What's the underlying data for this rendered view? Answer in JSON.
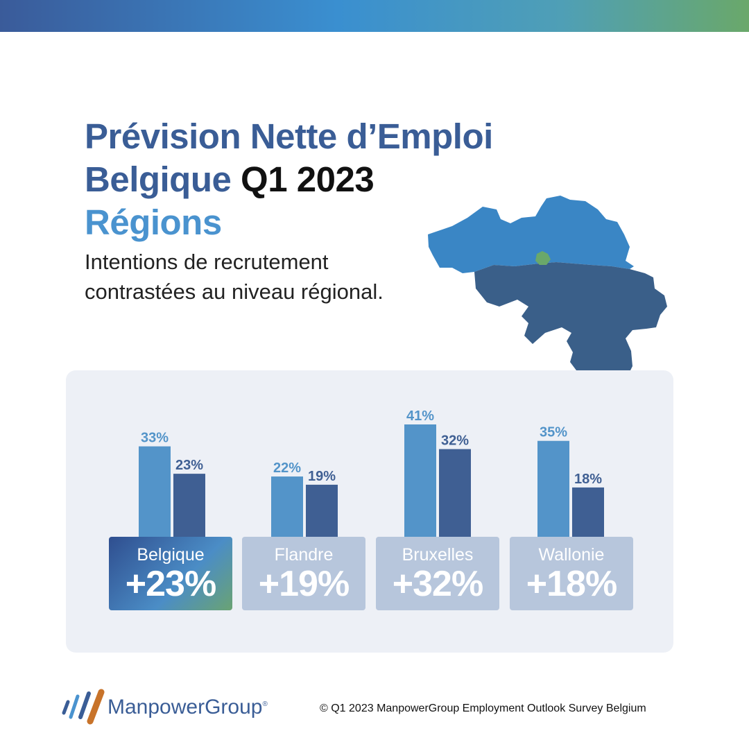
{
  "header": {
    "title_line1": "Prévision Nette d’Emploi",
    "title_line2_part1": "Belgique",
    "title_line2_part2": "Q1 2023",
    "title_line3": "Régions",
    "subtitle_line1": "Intentions de recrutement",
    "subtitle_line2": "contrastées au niveau régional."
  },
  "colors": {
    "brand_blue": "#3a5d96",
    "light_blue": "#4a93cf",
    "bar_light": "#5394c9",
    "bar_dark": "#3f5f93",
    "card_inactive": "#b7c6dc",
    "map_flanders": "#3a86c5",
    "map_wallonia": "#3a5f89",
    "map_brussels": "#6aa86a"
  },
  "chart_data": {
    "type": "bar",
    "categories": [
      "Belgique",
      "Flandre",
      "Bruxelles",
      "Wallonie"
    ],
    "series": [
      {
        "values": [
          33,
          22,
          41,
          35
        ],
        "labels": [
          "33%",
          "22%",
          "41%",
          "35%"
        ]
      },
      {
        "values": [
          23,
          19,
          32,
          18
        ],
        "labels": [
          "23%",
          "19%",
          "32%",
          "18%"
        ]
      }
    ],
    "ylim": [
      0,
      41
    ],
    "title": "",
    "xlabel": "",
    "ylabel": ""
  },
  "cards": [
    {
      "name": "Belgique",
      "value": "+23%",
      "active": true
    },
    {
      "name": "Flandre",
      "value": "+19%",
      "active": false
    },
    {
      "name": "Bruxelles",
      "value": "+32%",
      "active": false
    },
    {
      "name": "Wallonie",
      "value": "+18%",
      "active": false
    }
  ],
  "footer": {
    "logo_text": "ManpowerGroup",
    "logo_mark": "®",
    "copyright": "© Q1 2023 ManpowerGroup Employment Outlook Survey Belgium"
  }
}
